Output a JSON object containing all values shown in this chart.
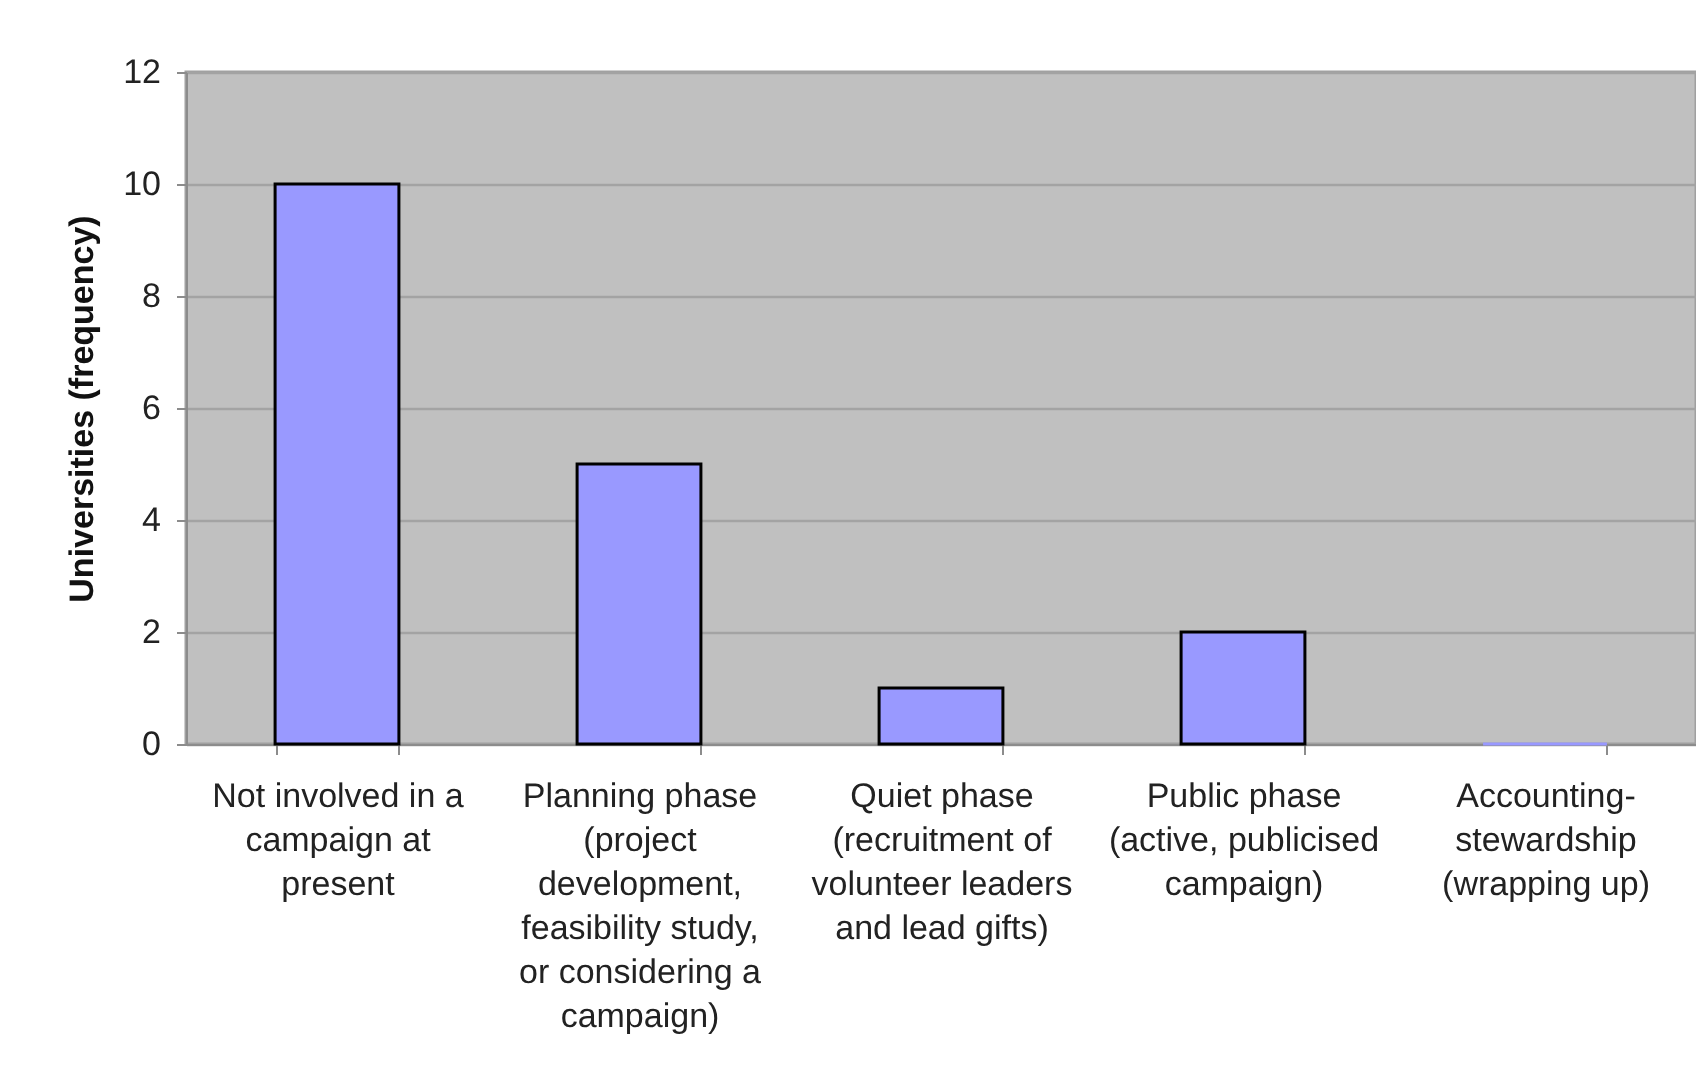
{
  "chart_data": {
    "type": "bar",
    "ylabel": "Universities (frequency)",
    "categories": [
      "Not involved in a campaign at present",
      "Planning phase (project development, feasibility study, or considering a campaign)",
      "Quiet phase (recruitment of volunteer leaders and lead gifts)",
      "Public phase (active, publicised campaign)",
      "Accounting-stewardship (wrapping up)"
    ],
    "values": [
      10,
      5,
      1,
      2,
      0
    ],
    "color": "#9999ff",
    "ylim": [
      0,
      12
    ],
    "yticks": [
      0,
      2,
      4,
      6,
      8,
      10,
      12
    ],
    "grid": "y"
  }
}
